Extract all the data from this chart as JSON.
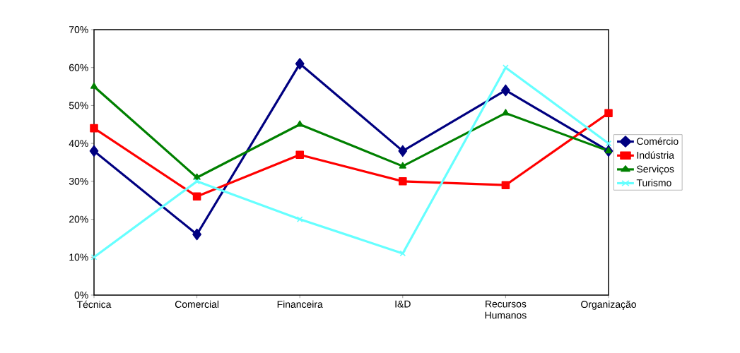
{
  "chart_data": {
    "type": "line",
    "categories": [
      "Técnica",
      "Comercial",
      "Financeira",
      "I&D",
      "Recursos Humanos",
      "Organização"
    ],
    "ylim": [
      0,
      70
    ],
    "yticks": [
      {
        "value": 0,
        "label": "0%"
      },
      {
        "value": 10,
        "label": "10%"
      },
      {
        "value": 20,
        "label": "20%"
      },
      {
        "value": 30,
        "label": "30%"
      },
      {
        "value": 40,
        "label": "40%"
      },
      {
        "value": 50,
        "label": "50%"
      },
      {
        "value": 60,
        "label": "60%"
      },
      {
        "value": 70,
        "label": "70%"
      }
    ],
    "legend": "right",
    "series": [
      {
        "name": "Comércio",
        "color": "#000080",
        "marker": "diamond",
        "values": [
          38,
          16,
          61,
          38,
          54,
          38
        ]
      },
      {
        "name": "Indústria",
        "color": "#ff0000",
        "marker": "square",
        "values": [
          44,
          26,
          37,
          30,
          29,
          48
        ]
      },
      {
        "name": "Serviços",
        "color": "#008000",
        "marker": "triangle",
        "values": [
          55,
          31,
          45,
          34,
          48,
          38
        ]
      },
      {
        "name": "Turismo",
        "color": "#66ffff",
        "marker": "cross",
        "values": [
          10,
          30,
          20,
          11,
          60,
          40
        ]
      }
    ]
  }
}
